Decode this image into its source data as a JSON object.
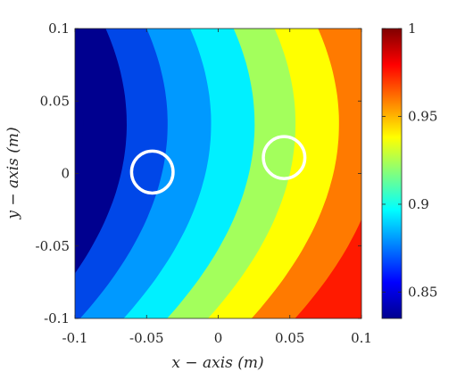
{
  "chart_data": {
    "type": "heatmap",
    "title": "",
    "xlabel": "x − axis (m)",
    "ylabel": "y − axis (m)",
    "xlim": [
      -0.1,
      0.1
    ],
    "ylim": [
      -0.1,
      0.1
    ],
    "x_ticks": [
      {
        "value": -0.1,
        "label": "-0.1"
      },
      {
        "value": -0.05,
        "label": "-0.05"
      },
      {
        "value": 0,
        "label": "0"
      },
      {
        "value": 0.05,
        "label": "0.05"
      },
      {
        "value": 0.1,
        "label": "0.1"
      }
    ],
    "y_ticks": [
      {
        "value": -0.1,
        "label": "-0.1"
      },
      {
        "value": -0.05,
        "label": "-0.05"
      },
      {
        "value": 0,
        "label": "0"
      },
      {
        "value": 0.05,
        "label": "0.05"
      },
      {
        "value": 0.1,
        "label": "0.1"
      }
    ],
    "colorbar": {
      "colormap": "jet",
      "range": [
        0.835,
        1.0
      ],
      "ticks": [
        {
          "value": 0.85,
          "label": "0.85"
        },
        {
          "value": 0.9,
          "label": "0.9"
        },
        {
          "value": 0.95,
          "label": "0.95"
        },
        {
          "value": 1,
          "label": "1"
        }
      ]
    },
    "contour_levels": [
      {
        "level": 0.845,
        "color": "#00008f"
      },
      {
        "level": 0.862,
        "color": "#0047e8"
      },
      {
        "level": 0.878,
        "color": "#0099ff"
      },
      {
        "level": 0.895,
        "color": "#00f0ff"
      },
      {
        "level": 0.912,
        "color": "#a3ff5c"
      },
      {
        "level": 0.928,
        "color": "#ffff00"
      },
      {
        "level": 0.945,
        "color": "#ff7a00"
      },
      {
        "level": 0.962,
        "color": "#ff1a00"
      }
    ],
    "markers": [
      {
        "shape": "circle",
        "x": -0.046,
        "y": 0.001,
        "radius": 0.0145,
        "color": "#ffffff"
      },
      {
        "shape": "circle",
        "x": 0.046,
        "y": 0.011,
        "radius": 0.0145,
        "color": "#ffffff"
      }
    ],
    "grid": false
  }
}
